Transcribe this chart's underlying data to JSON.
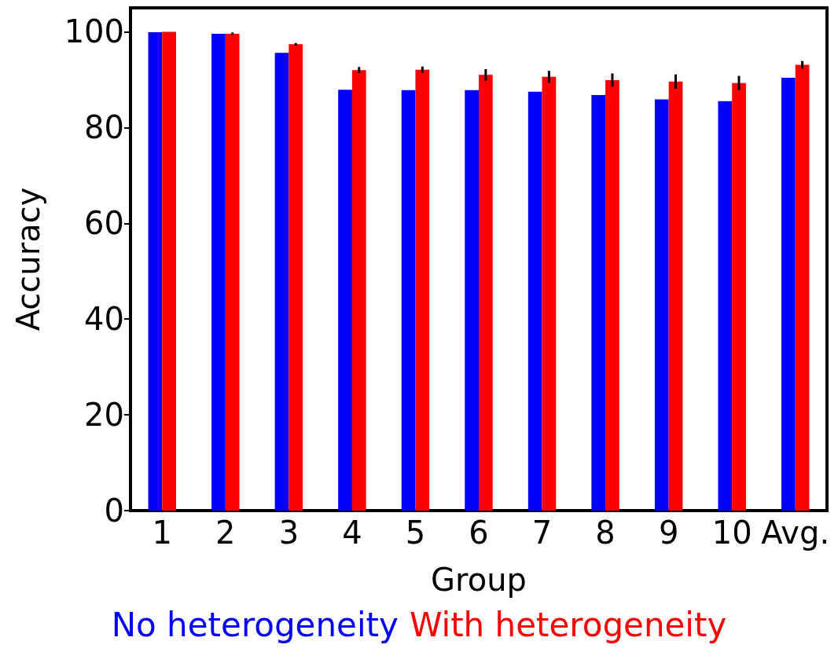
{
  "chart_data": {
    "type": "bar",
    "xlabel": "Group",
    "ylabel": "Accuracy",
    "categories": [
      "1",
      "2",
      "3",
      "4",
      "5",
      "6",
      "7",
      "8",
      "9",
      "10",
      "Avg."
    ],
    "series": [
      {
        "name": "No heterogeneity",
        "color": "#0000ff",
        "values": [
          99.9,
          99.6,
          95.6,
          87.9,
          87.8,
          87.8,
          87.5,
          86.8,
          85.9,
          85.5,
          90.4
        ]
      },
      {
        "name": "With heterogeneity",
        "color": "#ff0000",
        "values": [
          100,
          99.6,
          97.4,
          92.0,
          92.1,
          91.0,
          90.6,
          89.9,
          89.6,
          89.3,
          93.1
        ],
        "errors": [
          null,
          0.25,
          0.25,
          0.65,
          0.65,
          1.2,
          1.25,
          1.4,
          1.5,
          1.5,
          0.8
        ]
      }
    ],
    "ylim": [
      0,
      105
    ],
    "yticks": [
      0,
      20,
      40,
      60,
      80,
      100
    ],
    "grid": false,
    "legend": "bottom"
  }
}
